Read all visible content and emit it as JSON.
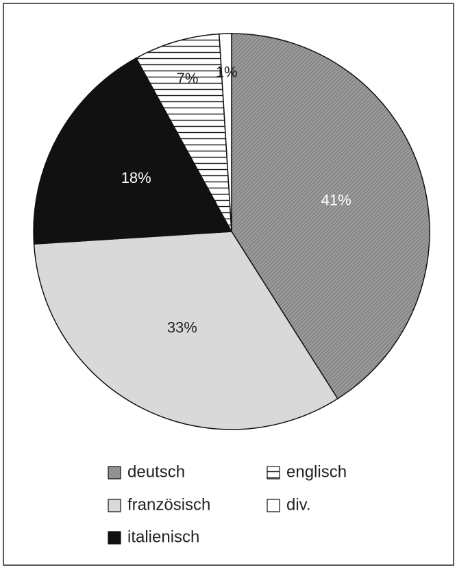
{
  "chart_data": {
    "type": "pie",
    "categories": [
      "deutsch",
      "französisch",
      "italienisch",
      "englisch",
      "div."
    ],
    "values": [
      41,
      33,
      18,
      7,
      1
    ],
    "value_labels": [
      "41%",
      "33%",
      "18%",
      "7%",
      "1%"
    ],
    "colors": [
      "#8c8c8c",
      "#d9d9d9",
      "#111111",
      "#ffffff",
      "#ffffff"
    ],
    "patterns": [
      "diagonal-hatch",
      "none",
      "none",
      "horizontal-lines",
      "none"
    ],
    "start_angle": 0,
    "direction": "clockwise",
    "legend": "bottom"
  }
}
